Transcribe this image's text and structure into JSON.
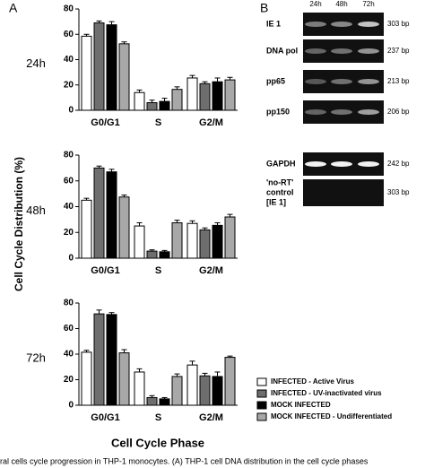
{
  "panel_labels": [
    "A",
    "B"
  ],
  "chart_data": [
    {
      "type": "bar",
      "title": "24h",
      "ylabel": "Cell Cycle Distribution (%)",
      "categories": [
        "G0/G1",
        "S",
        "G2/M"
      ],
      "ylim": [
        0,
        80
      ],
      "yticks": [
        0,
        20,
        40,
        60,
        80
      ],
      "series": [
        {
          "color": "#ffffff",
          "values": [
            58.5,
            14,
            25.5
          ],
          "errors": [
            1.5,
            2,
            2
          ]
        },
        {
          "color": "#6e6e6e",
          "values": [
            69,
            6,
            21
          ],
          "errors": [
            1.5,
            2,
            1.5
          ]
        },
        {
          "color": "#000000",
          "values": [
            67.5,
            7,
            22.5
          ],
          "errors": [
            2.5,
            2.5,
            3
          ]
        },
        {
          "color": "#a8a8a8",
          "values": [
            52.5,
            16.5,
            24
          ],
          "errors": [
            1.5,
            2,
            2
          ]
        }
      ]
    },
    {
      "type": "bar",
      "title": "48h",
      "categories": [
        "G0/G1",
        "S",
        "G2/M"
      ],
      "ylim": [
        0,
        80
      ],
      "yticks": [
        0,
        20,
        40,
        60,
        80
      ],
      "series": [
        {
          "color": "#ffffff",
          "values": [
            45,
            25,
            27
          ],
          "errors": [
            1.5,
            2.5,
            2
          ]
        },
        {
          "color": "#6e6e6e",
          "values": [
            70,
            5.5,
            22
          ],
          "errors": [
            1.5,
            1,
            1.5
          ]
        },
        {
          "color": "#000000",
          "values": [
            67,
            5,
            25.5
          ],
          "errors": [
            2,
            1,
            2
          ]
        },
        {
          "color": "#a8a8a8",
          "values": [
            47.5,
            27.5,
            32
          ],
          "errors": [
            1.5,
            2,
            2
          ]
        }
      ]
    },
    {
      "type": "bar",
      "title": "72h",
      "xlabel": "Cell Cycle Phase",
      "legend": "right",
      "categories": [
        "G0/G1",
        "S",
        "G2/M"
      ],
      "ylim": [
        0,
        80
      ],
      "yticks": [
        0,
        20,
        40,
        60,
        80
      ],
      "series": [
        {
          "name": "INFECTED - Active Virus",
          "color": "#ffffff",
          "values": [
            41.5,
            26,
            31.5
          ],
          "errors": [
            1.5,
            2.5,
            3
          ]
        },
        {
          "name": "INFECTED - UV-inactivated virus",
          "color": "#6e6e6e",
          "values": [
            71.5,
            6,
            23
          ],
          "errors": [
            3,
            1.5,
            2
          ]
        },
        {
          "name": "MOCK INFECTED",
          "color": "#000000",
          "values": [
            71,
            5,
            22.5
          ],
          "errors": [
            1.5,
            1,
            3.5
          ]
        },
        {
          "name": "MOCK INFECTED - Undifferentiated",
          "color": "#a8a8a8",
          "values": [
            41,
            22.5,
            37.5
          ],
          "errors": [
            2.5,
            2,
            1
          ]
        }
      ]
    }
  ],
  "gel": {
    "lanes": [
      "24h",
      "48h",
      "72h"
    ],
    "rows": [
      {
        "label": [
          "IE 1"
        ],
        "size": "303 bp"
      },
      {
        "label": [
          "DNA pol"
        ],
        "size": "237 bp"
      },
      {
        "label": [
          "pp65"
        ],
        "size": "213 bp"
      },
      {
        "label": [
          "pp150"
        ],
        "size": "206 bp"
      },
      {
        "label": [
          "GAPDH"
        ],
        "size": "242 bp"
      },
      {
        "label": [
          "'no-RT'",
          "control",
          "[IE 1]"
        ],
        "size": "303 bp"
      }
    ]
  },
  "caption": "ral cells cycle progression in THP-1 monocytes. (A) THP-1 cell DNA distribution in the cell cycle phases"
}
